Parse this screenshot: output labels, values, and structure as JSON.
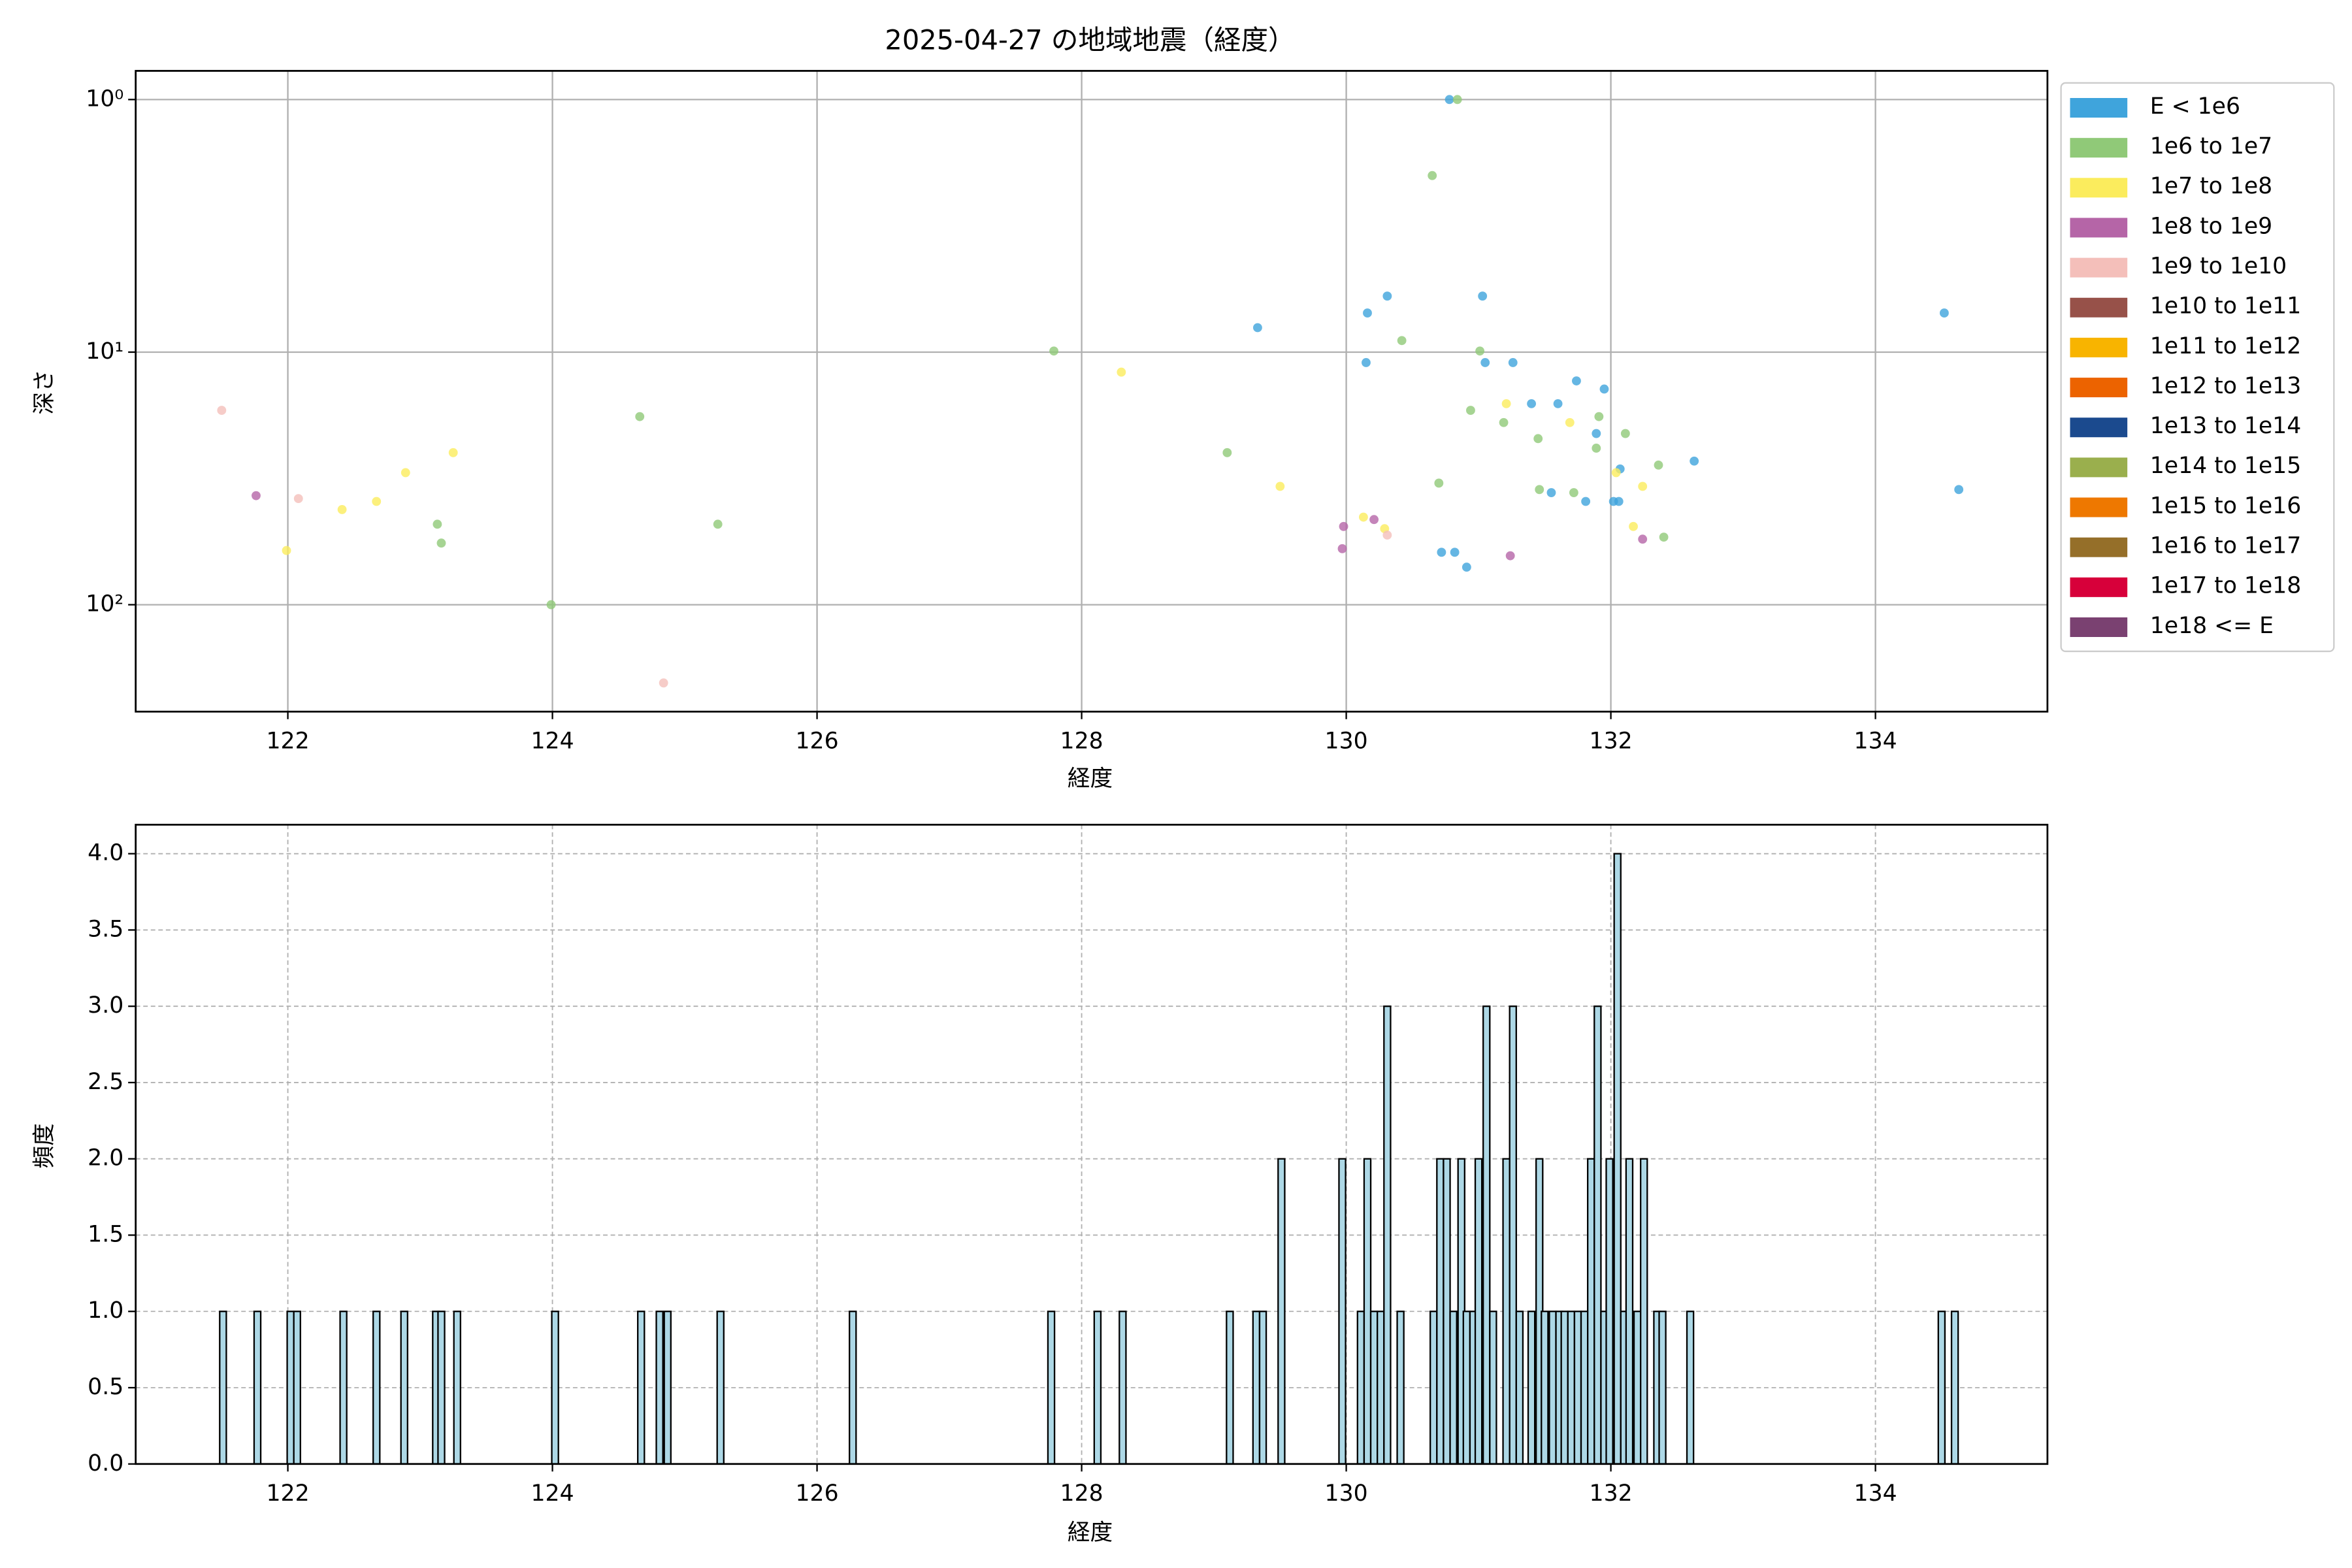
{
  "chart_data": [
    {
      "type": "scatter",
      "title": "2025-04-27 の地域地震（経度）",
      "x_label": "経度",
      "y_label": "深さ",
      "xlim": [
        120.85,
        135.3
      ],
      "xticks": [
        122,
        124,
        126,
        128,
        130,
        132,
        134
      ],
      "ylim": [
        265,
        0.77
      ],
      "log_y": true,
      "yticks": [
        {
          "value": 1,
          "label": "10⁰"
        },
        {
          "value": 10,
          "label": "10¹"
        },
        {
          "value": 100,
          "label": "10²"
        }
      ],
      "grid": true,
      "legend": "outside-right",
      "series": [
        {
          "name": "E < 1e6",
          "color": "#3fa4dc",
          "x": [
            129.33,
            130.16,
            130.31,
            130.15,
            131.03,
            131.05,
            131.26,
            130.78,
            131.4,
            131.6,
            131.74,
            131.95,
            131.89,
            131.55,
            131.81,
            132.07,
            132.02,
            132.06,
            132.63,
            130.72,
            130.82,
            130.91,
            134.52,
            134.63
          ],
          "values": [
            8.0,
            7.0,
            6.0,
            11,
            6.0,
            11,
            11,
            1.0,
            16,
            16,
            13,
            14,
            21,
            36,
            39,
            29,
            39,
            39,
            27,
            62,
            62,
            71,
            7.0,
            35
          ]
        },
        {
          "name": "1e6 to 1e7",
          "color": "#90c978",
          "x": [
            130.84,
            130.65,
            130.42,
            127.79,
            131.01,
            130.94,
            131.19,
            131.45,
            131.91,
            131.89,
            132.11,
            132.36,
            130.7,
            131.46,
            131.72,
            132.4,
            124.66,
            129.1,
            123.13,
            123.16,
            125.25,
            123.99
          ],
          "values": [
            1.0,
            2.0,
            9.0,
            9.9,
            9.9,
            17,
            19,
            22,
            18,
            24,
            21,
            28,
            33,
            35,
            36,
            54,
            18,
            25,
            48,
            57,
            48,
            100
          ]
        },
        {
          "name": "1e7 to 1e8",
          "color": "#fbec5d",
          "x": [
            128.3,
            131.21,
            131.69,
            132.04,
            132.24,
            129.5,
            130.13,
            130.29,
            132.17,
            122.89,
            123.25,
            122.67,
            122.41,
            121.99
          ],
          "values": [
            12,
            16,
            19,
            30,
            34,
            34,
            45,
            50,
            49,
            30,
            25,
            39,
            42,
            61
          ]
        },
        {
          "name": "1e8 to 1e9",
          "color": "#b565a7",
          "x": [
            121.76,
            129.98,
            130.21,
            129.97,
            131.24,
            132.24
          ],
          "values": [
            37,
            49,
            46,
            60,
            64,
            55
          ]
        },
        {
          "name": "1e9 to 1e10",
          "color": "#f4bfba",
          "x": [
            121.5,
            122.08,
            130.31,
            124.84
          ],
          "values": [
            17,
            38,
            53,
            204
          ]
        },
        {
          "name": "1e10 to 1e11",
          "color": "#975149",
          "x": [],
          "values": []
        },
        {
          "name": "1e11 to 1e12",
          "color": "#f8b400",
          "x": [],
          "values": []
        },
        {
          "name": "1e12 to 1e13",
          "color": "#ec6300",
          "x": [],
          "values": []
        },
        {
          "name": "1e13 to 1e14",
          "color": "#1b4a8e",
          "x": [],
          "values": []
        },
        {
          "name": "1e14 to 1e15",
          "color": "#9aaf4d",
          "x": [],
          "values": []
        },
        {
          "name": "1e15 to 1e16",
          "color": "#ee7800",
          "x": [],
          "values": []
        },
        {
          "name": "1e16 to 1e17",
          "color": "#956f29",
          "x": [],
          "values": []
        },
        {
          "name": "1e17 to 1e18",
          "color": "#d7003a",
          "x": [],
          "values": []
        },
        {
          "name": "1e18 <= E",
          "color": "#7a4171",
          "x": [],
          "values": []
        }
      ]
    },
    {
      "type": "bar",
      "x_label": "経度",
      "y_label": "頻度",
      "color": "#add8e6",
      "edge_color": "#000000",
      "bar_width": 0.05,
      "xlim": [
        120.85,
        135.3
      ],
      "xticks": [
        122,
        124,
        126,
        128,
        130,
        132,
        134
      ],
      "ylim": [
        0,
        4.19
      ],
      "yticks": [
        {
          "value": 0,
          "label": "0.0"
        },
        0.5,
        {
          "value": 1,
          "label": "1.0"
        },
        1.5,
        {
          "value": 2,
          "label": "2.0"
        },
        2.5,
        {
          "value": 3,
          "label": "3.0"
        },
        3.5,
        {
          "value": 4,
          "label": "4.0"
        }
      ],
      "grid": true,
      "x": [
        121.51,
        121.77,
        122.02,
        122.07,
        122.42,
        122.67,
        122.88,
        123.12,
        123.16,
        123.28,
        124.02,
        124.67,
        124.81,
        124.87,
        125.27,
        126.27,
        127.77,
        128.12,
        128.31,
        129.12,
        129.32,
        129.37,
        129.51,
        129.97,
        130.11,
        130.16,
        130.21,
        130.26,
        130.31,
        130.41,
        130.66,
        130.71,
        130.76,
        130.81,
        130.87,
        130.91,
        130.96,
        131.0,
        131.06,
        131.11,
        131.21,
        131.26,
        131.31,
        131.4,
        131.46,
        131.5,
        131.56,
        131.61,
        131.65,
        131.7,
        131.75,
        131.8,
        131.85,
        131.9,
        131.95,
        131.99,
        132.05,
        132.1,
        132.14,
        132.2,
        132.25,
        132.35,
        132.39,
        132.6,
        134.5,
        134.6
      ],
      "values": [
        1,
        1,
        1,
        1,
        1,
        1,
        1,
        1,
        1,
        1,
        1,
        1,
        1,
        1,
        1,
        1,
        1,
        1,
        1,
        1,
        1,
        1,
        2,
        2,
        1,
        2,
        1,
        1,
        3,
        1,
        1,
        2,
        2,
        1,
        2,
        1,
        1,
        2,
        3,
        1,
        2,
        3,
        1,
        1,
        2,
        1,
        1,
        1,
        1,
        1,
        1,
        1,
        2,
        3,
        1,
        2,
        4,
        1,
        2,
        1,
        2,
        1,
        1,
        1,
        1,
        1
      ]
    }
  ]
}
